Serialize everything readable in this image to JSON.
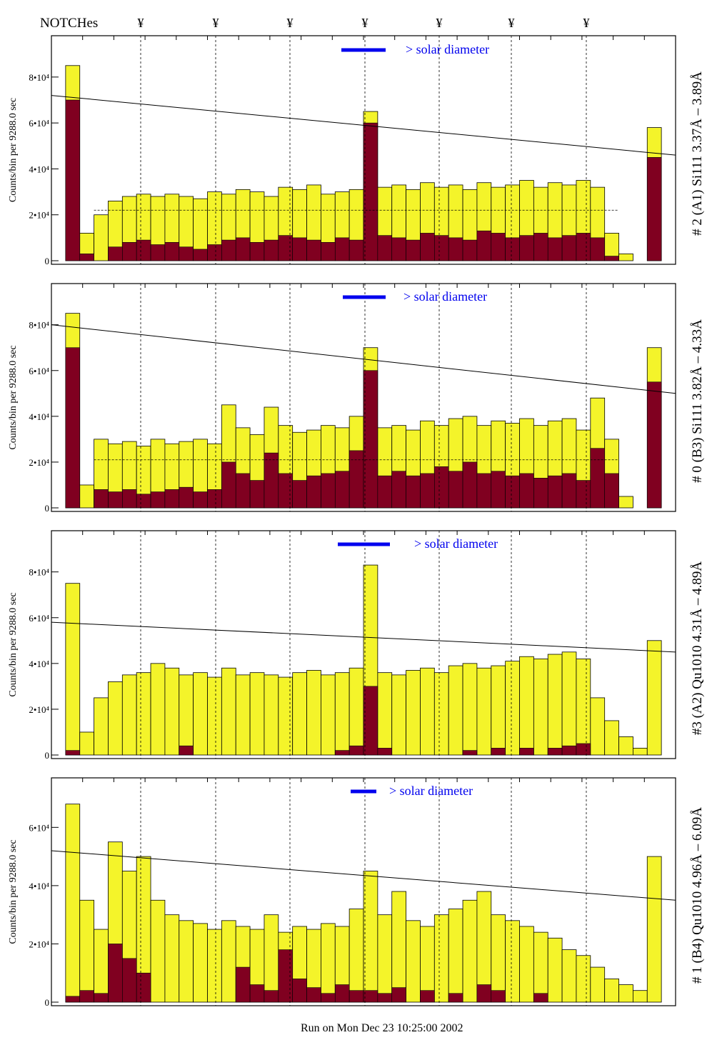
{
  "header": {
    "notches_label": "NOTCHes",
    "notch_marker": "¥",
    "notch_count": 7
  },
  "footer": {
    "run_text": "Run on Mon Dec 23 10:25:00 2002"
  },
  "colors": {
    "total": "#f4f42a",
    "subset": "#800020",
    "legend_bar": "#0000ee",
    "legend_text": "#0000ee"
  },
  "legend": {
    "text": "> solar diameter"
  },
  "chart_data": [
    {
      "type": "bar",
      "title": "# 2 (A1) Si111  3.37Å – 3.89Å",
      "ylabel": "Counts/bin per   9288.0 sec",
      "yticks": [
        "0",
        "2•10⁴",
        "4•10⁴",
        "6•10⁴",
        "8•10⁴"
      ],
      "ylim": [
        0,
        98000
      ],
      "total": [
        0,
        8.5,
        1.2,
        2.0,
        2.6,
        2.8,
        2.9,
        2.8,
        2.9,
        2.8,
        2.7,
        3.0,
        2.9,
        3.1,
        3.0,
        2.8,
        3.2,
        3.1,
        3.3,
        2.9,
        3.0,
        3.1,
        6.5,
        3.2,
        3.3,
        3.1,
        3.4,
        3.2,
        3.3,
        3.1,
        3.4,
        3.2,
        3.3,
        3.5,
        3.2,
        3.4,
        3.3,
        3.5,
        3.2,
        1.2,
        0.3,
        0,
        5.8,
        0
      ],
      "subset": [
        0,
        7.0,
        0.3,
        0,
        0.6,
        0.8,
        0.9,
        0.7,
        0.8,
        0.6,
        0.5,
        0.7,
        0.9,
        1.0,
        0.8,
        0.9,
        1.1,
        1.0,
        0.9,
        0.8,
        1.0,
        0.9,
        6.0,
        1.1,
        1.0,
        0.9,
        1.2,
        1.1,
        1.0,
        0.9,
        1.3,
        1.2,
        1.0,
        1.1,
        1.2,
        1.0,
        1.1,
        1.2,
        1.0,
        0.2,
        0,
        0,
        4.5,
        0
      ],
      "trend": [
        7.2,
        4.6
      ],
      "baseline": 2.2
    },
    {
      "type": "bar",
      "title": "# 0 (B3) Si111  3.82Å – 4.33Å",
      "ylabel": "Counts/bin per   9288.0 sec",
      "yticks": [
        "0",
        "2•10⁴",
        "4•10⁴",
        "6•10⁴",
        "8•10⁴"
      ],
      "ylim": [
        0,
        98000
      ],
      "total": [
        0,
        8.5,
        1.0,
        3.0,
        2.8,
        2.9,
        2.7,
        3.0,
        2.8,
        2.9,
        3.0,
        2.8,
        4.5,
        3.5,
        3.2,
        4.4,
        3.6,
        3.3,
        3.4,
        3.6,
        3.5,
        4.0,
        7.0,
        3.5,
        3.6,
        3.4,
        3.8,
        3.6,
        3.9,
        4.0,
        3.6,
        3.8,
        3.7,
        3.9,
        3.6,
        3.8,
        3.9,
        3.4,
        4.8,
        3.0,
        0.5,
        0,
        7.0,
        0
      ],
      "subset": [
        0,
        7.0,
        0,
        0.8,
        0.7,
        0.8,
        0.6,
        0.7,
        0.8,
        0.9,
        0.7,
        0.8,
        2.0,
        1.5,
        1.2,
        2.4,
        1.5,
        1.2,
        1.4,
        1.5,
        1.6,
        2.5,
        6.0,
        1.4,
        1.6,
        1.4,
        1.5,
        1.8,
        1.6,
        2.0,
        1.5,
        1.6,
        1.4,
        1.5,
        1.3,
        1.4,
        1.5,
        1.2,
        2.6,
        1.5,
        0,
        0,
        5.5,
        0
      ],
      "trend": [
        8.0,
        5.0
      ],
      "baseline": 2.1
    },
    {
      "type": "bar",
      "title": "#3 (A2) Qu1010  4.31Å – 4.89Å",
      "ylabel": "Counts/bin per   9288.0 sec",
      "yticks": [
        "0",
        "2•10⁴",
        "4•10⁴",
        "6•10⁴",
        "8•10⁴"
      ],
      "ylim": [
        0,
        98000
      ],
      "total": [
        0,
        7.5,
        1.0,
        2.5,
        3.2,
        3.5,
        3.6,
        4.0,
        3.8,
        3.5,
        3.6,
        3.4,
        3.8,
        3.5,
        3.6,
        3.5,
        3.4,
        3.6,
        3.7,
        3.5,
        3.6,
        3.8,
        8.3,
        3.6,
        3.5,
        3.7,
        3.8,
        3.6,
        3.9,
        4.0,
        3.8,
        3.9,
        4.1,
        4.3,
        4.2,
        4.4,
        4.5,
        4.2,
        2.5,
        1.5,
        0.8,
        0.3,
        5.0,
        0
      ],
      "subset": [
        0,
        0.2,
        0,
        0,
        0,
        0,
        0,
        0,
        0,
        0.4,
        0,
        0,
        0,
        0,
        0,
        0,
        0,
        0,
        0,
        0,
        0.2,
        0.4,
        3.0,
        0.3,
        0,
        0,
        0,
        0,
        0,
        0.2,
        0,
        0.3,
        0,
        0.3,
        0,
        0.3,
        0.4,
        0.5,
        0,
        0,
        0,
        0,
        0,
        0
      ],
      "trend": [
        5.8,
        4.5
      ],
      "baseline": 0
    },
    {
      "type": "bar",
      "title": "# 1 (B4) Qu1010 4.96Å – 6.09Å",
      "ylabel": "Counts/bin per   9288.0 sec",
      "yticks": [
        "0",
        "2•10⁴",
        "4•10⁴",
        "6•10⁴"
      ],
      "ylim": [
        0,
        77000
      ],
      "total": [
        0,
        6.8,
        3.5,
        2.5,
        5.5,
        4.5,
        5.0,
        3.5,
        3.0,
        2.8,
        2.7,
        2.5,
        2.8,
        2.6,
        2.5,
        3.0,
        2.4,
        2.6,
        2.5,
        2.7,
        2.6,
        3.2,
        4.5,
        3.0,
        3.8,
        2.8,
        2.6,
        3.0,
        3.2,
        3.5,
        3.8,
        3.0,
        2.8,
        2.6,
        2.4,
        2.2,
        1.8,
        1.6,
        1.2,
        0.8,
        0.6,
        0.4,
        5.0,
        0
      ],
      "subset": [
        0,
        0.2,
        0.4,
        0.3,
        2.0,
        1.5,
        1.0,
        0,
        0,
        0,
        0,
        0,
        0,
        1.2,
        0.6,
        0.4,
        1.8,
        0.8,
        0.5,
        0.3,
        0.6,
        0.4,
        0.4,
        0.3,
        0.5,
        0,
        0.4,
        0,
        0.3,
        0,
        0.6,
        0.4,
        0,
        0,
        0.3,
        0,
        0,
        0,
        0,
        0,
        0,
        0,
        0,
        0
      ],
      "trend": [
        5.2,
        3.5
      ],
      "baseline": 0
    }
  ]
}
